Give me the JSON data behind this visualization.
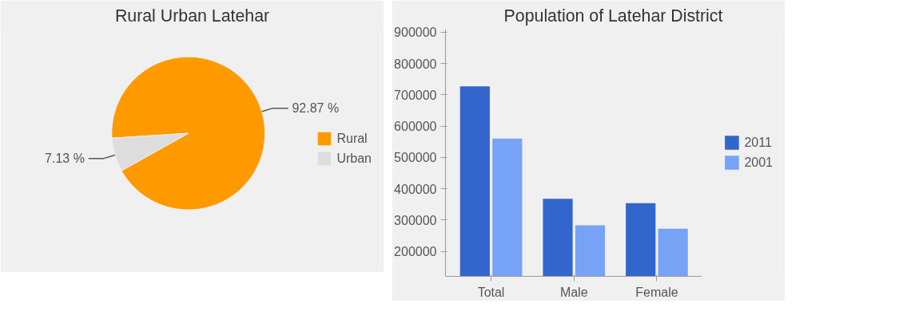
{
  "chart_data": [
    {
      "type": "pie",
      "title": "Rural Urban Latehar",
      "categories": [
        "Rural",
        "Urban"
      ],
      "values": [
        92.87,
        7.13
      ],
      "colors": [
        "#ff9900",
        "#dddddd"
      ],
      "value_labels": [
        "92.87 %",
        "7.13 %"
      ],
      "legend": "right"
    },
    {
      "type": "bar",
      "title": "Population of Latehar District",
      "categories": [
        "Total",
        "Male",
        "Female"
      ],
      "series": [
        {
          "name": "2011",
          "color": "#3366cc",
          "values": [
            727000,
            368000,
            354000
          ]
        },
        {
          "name": "2001",
          "color": "#77a3f7",
          "values": [
            560000,
            283000,
            272000
          ]
        }
      ],
      "ylim": [
        120000,
        910000
      ],
      "yticks": [
        200000,
        300000,
        400000,
        500000,
        600000,
        700000,
        800000,
        900000
      ],
      "legend": "right",
      "grid": false
    }
  ]
}
